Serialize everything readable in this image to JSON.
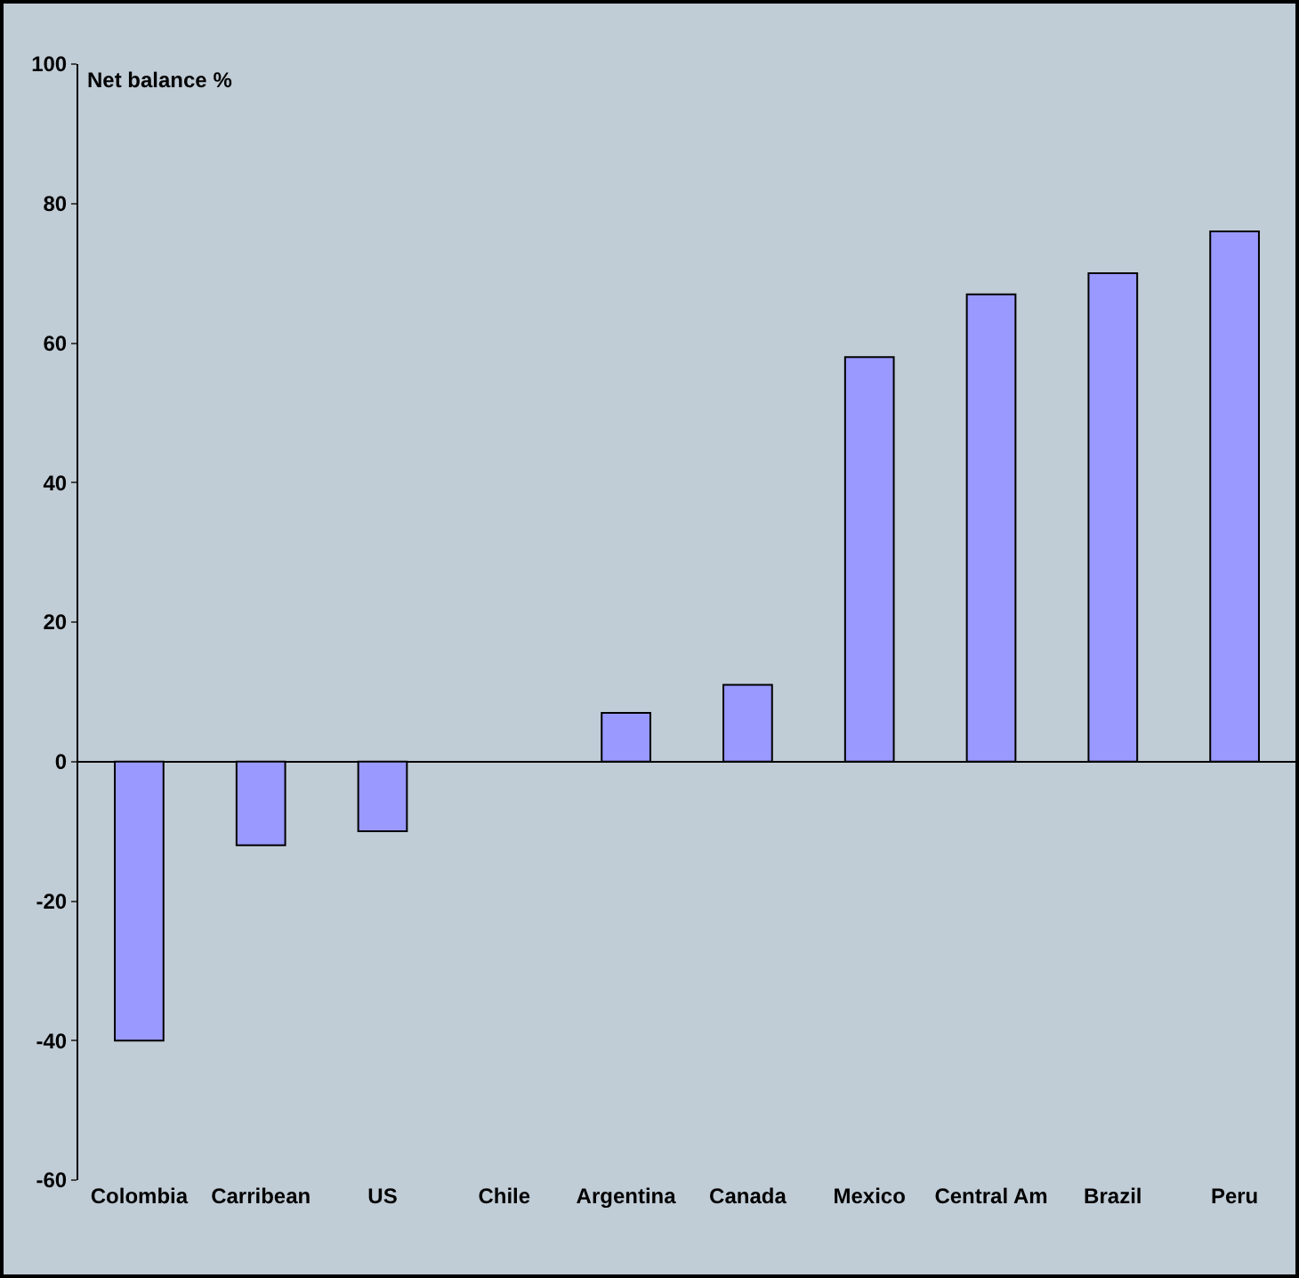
{
  "chart_data": {
    "type": "bar",
    "ylabel": "Net balance %",
    "categories": [
      "Colombia",
      "Carribean",
      "US",
      "Chile",
      "Argentina",
      "Canada",
      "Mexico",
      "Central Am",
      "Brazil",
      "Peru"
    ],
    "values": [
      -40,
      -12,
      -10,
      null,
      7,
      11,
      58,
      67,
      70,
      76
    ],
    "color": "#9999ff",
    "ylim": [
      -60,
      100
    ],
    "yticks": [
      -60,
      -40,
      -20,
      0,
      20,
      40,
      60,
      80,
      100
    ],
    "legend": false
  }
}
